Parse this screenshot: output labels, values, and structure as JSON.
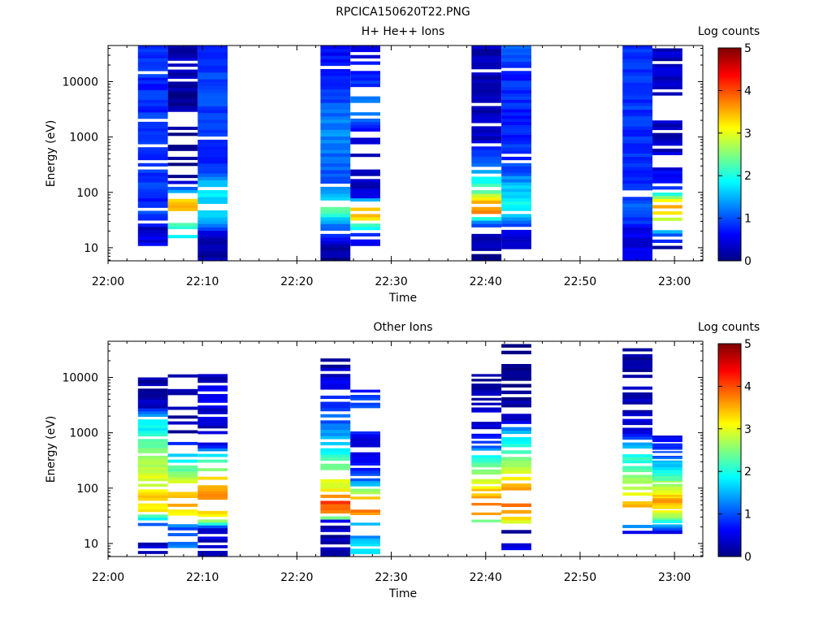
{
  "figure_title": "RPCICA150620T22.PNG",
  "chart_data": [
    {
      "type": "heatmap",
      "title": "H+ He++ Ions",
      "xlabel": "Time",
      "ylabel": "Energy (eV)",
      "colorbar_label": "Log counts",
      "y_scale": "log",
      "ylim": [
        5.8,
        45000
      ],
      "xlim": [
        "22:00",
        "23:03"
      ],
      "x_ticks": [
        "22:00",
        "22:10",
        "22:20",
        "22:30",
        "22:40",
        "22:50",
        "23:00"
      ],
      "y_ticks": [
        "10",
        "100",
        "1000",
        "10000"
      ],
      "color_range": [
        0,
        5
      ],
      "colorbar_ticks": [
        "0",
        "1",
        "2",
        "3",
        "4",
        "5"
      ],
      "colormap": "jet",
      "columns": [
        {
          "start": "22:03:10",
          "end": "22:06:20",
          "emin": 9.5,
          "emax": 45000,
          "profile": [
            [
              9.5,
              0.6
            ],
            [
              15,
              0.5
            ],
            [
              22,
              0.3
            ],
            [
              30,
              0.9
            ],
            [
              45,
              1.0
            ],
            [
              70,
              0.8
            ],
            [
              120,
              0.9
            ],
            [
              300,
              0.9
            ],
            [
              1000,
              0.9
            ],
            [
              5000,
              0.8
            ],
            [
              45000,
              0.9
            ]
          ],
          "gaps": 0.05
        },
        {
          "start": "22:06:20",
          "end": "22:09:30",
          "emin": 15,
          "emax": 45000,
          "profile": [
            [
              15,
              1.7
            ],
            [
              20,
              2.0
            ],
            [
              30,
              2.6
            ],
            [
              40,
              3.2
            ],
            [
              55,
              3.5
            ],
            [
              70,
              3.4
            ],
            [
              90,
              2.8
            ],
            [
              110,
              1.0
            ],
            [
              200,
              0.1
            ],
            [
              1000,
              0.1
            ],
            [
              10000,
              0.2
            ],
            [
              45000,
              0.3
            ]
          ],
          "gaps": 0.45
        },
        {
          "start": "22:09:30",
          "end": "22:12:40",
          "emin": 5.8,
          "emax": 45000,
          "profile": [
            [
              5.8,
              0.2
            ],
            [
              18,
              0.3
            ],
            [
              25,
              1.2
            ],
            [
              40,
              1.7
            ],
            [
              60,
              1.6
            ],
            [
              100,
              1.9
            ],
            [
              140,
              1.5
            ],
            [
              300,
              0.8
            ],
            [
              1000,
              0.9
            ],
            [
              10000,
              0.9
            ],
            [
              45000,
              0.8
            ]
          ],
          "gaps": 0.06
        },
        {
          "start": "22:22:30",
          "end": "22:25:40",
          "emin": 5.8,
          "emax": 45000,
          "profile": [
            [
              5.8,
              0.05
            ],
            [
              10,
              0.2
            ],
            [
              15,
              0.6
            ],
            [
              25,
              1.2
            ],
            [
              35,
              1.8
            ],
            [
              50,
              2.3
            ],
            [
              70,
              1.6
            ],
            [
              150,
              1.0
            ],
            [
              500,
              1.2
            ],
            [
              1500,
              1.3
            ],
            [
              5000,
              1.0
            ],
            [
              45000,
              0.6
            ]
          ],
          "gaps": 0.1
        },
        {
          "start": "22:25:40",
          "end": "22:28:50",
          "emin": 9.5,
          "emax": 45000,
          "profile": [
            [
              9.5,
              0.3
            ],
            [
              18,
              1.0
            ],
            [
              25,
              2.2
            ],
            [
              35,
              3.4
            ],
            [
              45,
              3.7
            ],
            [
              60,
              3.0
            ],
            [
              70,
              2.0
            ],
            [
              80,
              0.5
            ],
            [
              200,
              0.2
            ],
            [
              1000,
              0.3
            ],
            [
              3000,
              1.4
            ],
            [
              6000,
              1.0
            ],
            [
              45000,
              0.4
            ]
          ],
          "gaps": 0.35
        },
        {
          "start": "22:38:30",
          "end": "22:41:40",
          "emin": 5.8,
          "emax": 45000,
          "profile": [
            [
              5.8,
              0.1
            ],
            [
              20,
              0.4
            ],
            [
              30,
              1.5
            ],
            [
              45,
              3.7
            ],
            [
              60,
              3.8
            ],
            [
              80,
              3.0
            ],
            [
              100,
              2.5
            ],
            [
              200,
              1.6
            ],
            [
              400,
              1.0
            ],
            [
              1000,
              0.3
            ],
            [
              10000,
              0.2
            ],
            [
              45000,
              0.3
            ]
          ],
          "gaps": 0.3
        },
        {
          "start": "22:41:40",
          "end": "22:44:50",
          "emin": 9.5,
          "emax": 45000,
          "profile": [
            [
              9.5,
              0.3
            ],
            [
              20,
              0.5
            ],
            [
              26,
              1.0
            ],
            [
              35,
              1.5
            ],
            [
              60,
              1.9
            ],
            [
              120,
              1.6
            ],
            [
              300,
              0.9
            ],
            [
              1000,
              0.8
            ],
            [
              10000,
              0.8
            ],
            [
              45000,
              1.0
            ]
          ],
          "gaps": 0.06
        },
        {
          "start": "22:54:30",
          "end": "22:57:40",
          "emin": 5.8,
          "emax": 45000,
          "profile": [
            [
              5.8,
              0.4
            ],
            [
              20,
              0.5
            ],
            [
              40,
              1.1
            ],
            [
              60,
              1.1
            ],
            [
              100,
              0.9
            ],
            [
              250,
              0.8
            ],
            [
              1000,
              0.8
            ],
            [
              10000,
              0.9
            ],
            [
              45000,
              0.8
            ]
          ],
          "gaps": 0.05
        },
        {
          "start": "22:57:40",
          "end": "23:00:50",
          "emin": 9.5,
          "emax": 40000,
          "profile": [
            [
              9.5,
              0.1
            ],
            [
              18,
              1.2
            ],
            [
              25,
              2.4
            ],
            [
              40,
              3.4
            ],
            [
              55,
              3.5
            ],
            [
              80,
              2.8
            ],
            [
              110,
              1.0
            ],
            [
              300,
              0.4
            ],
            [
              1000,
              0.3
            ],
            [
              10000,
              0.4
            ],
            [
              40000,
              0.3
            ]
          ],
          "gaps": 0.35
        }
      ]
    },
    {
      "type": "heatmap",
      "title": "Other Ions",
      "xlabel": "Time",
      "ylabel": "Energy (eV)",
      "colorbar_label": "Log counts",
      "y_scale": "log",
      "ylim": [
        5.8,
        45000
      ],
      "xlim": [
        "22:00",
        "23:03"
      ],
      "x_ticks": [
        "22:00",
        "22:10",
        "22:20",
        "22:30",
        "22:40",
        "22:50",
        "23:00"
      ],
      "y_ticks": [
        "10",
        "100",
        "1000",
        "10000"
      ],
      "color_range": [
        0,
        5
      ],
      "colorbar_ticks": [
        "0",
        "1",
        "2",
        "3",
        "4",
        "5"
      ],
      "colormap": "jet",
      "columns": [
        {
          "start": "22:03:10",
          "end": "22:06:20",
          "emin": 5.8,
          "emax": 10000,
          "profile": [
            [
              5.8,
              0.4
            ],
            [
              18,
              0.3
            ],
            [
              25,
              1.5
            ],
            [
              40,
              3.2
            ],
            [
              60,
              3.4
            ],
            [
              100,
              3.0
            ],
            [
              300,
              2.8
            ],
            [
              1000,
              2.0
            ],
            [
              2000,
              1.6
            ],
            [
              3000,
              0.3
            ],
            [
              10000,
              0.2
            ]
          ],
          "gaps": 0.3
        },
        {
          "start": "22:06:20",
          "end": "22:09:30",
          "emin": 5.8,
          "emax": 14500,
          "profile": [
            [
              5.8,
              1.5
            ],
            [
              12,
              1.2
            ],
            [
              20,
              1.0
            ],
            [
              25,
              2.3
            ],
            [
              40,
              3.3
            ],
            [
              60,
              3.5
            ],
            [
              100,
              3.2
            ],
            [
              300,
              2.0
            ],
            [
              500,
              1.0
            ],
            [
              1000,
              0.2
            ],
            [
              14500,
              0.1
            ]
          ],
          "gaps": 0.55
        },
        {
          "start": "22:09:30",
          "end": "22:12:40",
          "emin": 5.8,
          "emax": 11500,
          "profile": [
            [
              5.8,
              0.3
            ],
            [
              18,
              0.4
            ],
            [
              25,
              2.5
            ],
            [
              40,
              3.5
            ],
            [
              60,
              3.8
            ],
            [
              100,
              3.7
            ],
            [
              200,
              2.8
            ],
            [
              400,
              1.8
            ],
            [
              700,
              0.3
            ],
            [
              5000,
              0.5
            ],
            [
              11500,
              0.3
            ]
          ],
          "gaps": 0.4
        },
        {
          "start": "22:22:30",
          "end": "22:25:40",
          "emin": 5.8,
          "emax": 22000,
          "profile": [
            [
              5.8,
              0.1
            ],
            [
              25,
              0.3
            ],
            [
              30,
              3.0
            ],
            [
              40,
              3.9
            ],
            [
              55,
              4.0
            ],
            [
              80,
              3.3
            ],
            [
              150,
              2.8
            ],
            [
              300,
              2.2
            ],
            [
              1000,
              1.3
            ],
            [
              3000,
              0.9
            ],
            [
              8000,
              0.5
            ],
            [
              22000,
              0.1
            ]
          ],
          "gaps": 0.35
        },
        {
          "start": "22:25:40",
          "end": "22:28:50",
          "emin": 5.8,
          "emax": 6000,
          "profile": [
            [
              5.8,
              1.8
            ],
            [
              10,
              1.8
            ],
            [
              20,
              0.5
            ],
            [
              25,
              2.5
            ],
            [
              35,
              3.6
            ],
            [
              50,
              3.8
            ],
            [
              70,
              3.2
            ],
            [
              100,
              2.2
            ],
            [
              140,
              1.0
            ],
            [
              500,
              0.3
            ],
            [
              2000,
              1.0
            ],
            [
              6000,
              0.8
            ]
          ],
          "gaps": 0.45
        },
        {
          "start": "22:38:30",
          "end": "22:41:40",
          "emin": 20,
          "emax": 11500,
          "profile": [
            [
              20,
              1.2
            ],
            [
              25,
              2.5
            ],
            [
              35,
              3.7
            ],
            [
              50,
              3.9
            ],
            [
              80,
              3.4
            ],
            [
              150,
              3.0
            ],
            [
              300,
              2.2
            ],
            [
              600,
              1.0
            ],
            [
              1000,
              0.4
            ],
            [
              11500,
              0.2
            ]
          ],
          "gaps": 0.45
        },
        {
          "start": "22:41:40",
          "end": "22:44:50",
          "emin": 5.8,
          "emax": 40000,
          "profile": [
            [
              5.8,
              0.5
            ],
            [
              20,
              0.1
            ],
            [
              25,
              3.0
            ],
            [
              40,
              3.7
            ],
            [
              60,
              3.9
            ],
            [
              100,
              3.6
            ],
            [
              200,
              2.9
            ],
            [
              500,
              2.2
            ],
            [
              1000,
              1.5
            ],
            [
              2000,
              0.2
            ],
            [
              40000,
              0.1
            ]
          ],
          "gaps": 0.55
        },
        {
          "start": "22:54:30",
          "end": "22:57:40",
          "emin": 15,
          "emax": 38000,
          "profile": [
            [
              15,
              0.2
            ],
            [
              25,
              2.0
            ],
            [
              35,
              3.2
            ],
            [
              50,
              3.6
            ],
            [
              80,
              2.9
            ],
            [
              200,
              2.4
            ],
            [
              500,
              1.8
            ],
            [
              1000,
              0.6
            ],
            [
              3000,
              0.3
            ],
            [
              38000,
              0.1
            ]
          ],
          "gaps": 0.5
        },
        {
          "start": "22:57:40",
          "end": "23:00:50",
          "emin": 15,
          "emax": 950,
          "profile": [
            [
              15,
              0.2
            ],
            [
              25,
              2.0
            ],
            [
              40,
              3.3
            ],
            [
              60,
              3.6
            ],
            [
              90,
              3.0
            ],
            [
              200,
              2.0
            ],
            [
              400,
              1.0
            ],
            [
              950,
              0.5
            ]
          ],
          "gaps": 0.1
        }
      ]
    }
  ]
}
